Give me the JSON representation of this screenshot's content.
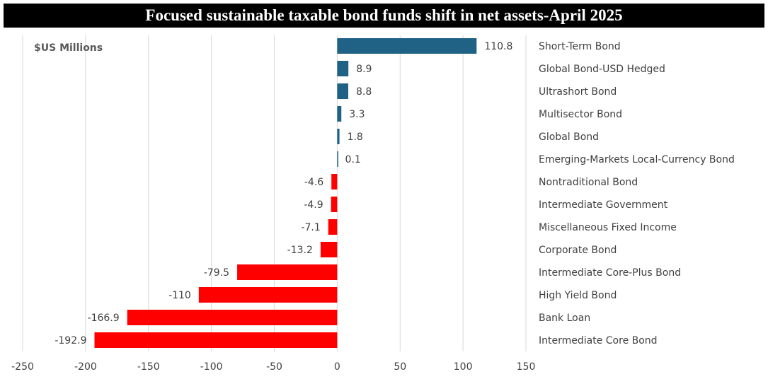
{
  "title": "Focused sustainable taxable bond funds shift in net assets-April 2025",
  "unit_label": "$US Millions",
  "colors": {
    "positive": "#1f6286",
    "negative": "#ff0000",
    "grid": "#d9d9d9",
    "title_bg": "#000000"
  },
  "chart_data": {
    "type": "bar",
    "orientation": "horizontal",
    "categories": [
      "Short-Term Bond",
      "Global Bond-USD Hedged",
      "Ultrashort Bond",
      "Multisector Bond",
      "Global Bond",
      "Emerging-Markets Local-Currency Bond",
      "Nontraditional Bond",
      "Intermediate Government",
      "Miscellaneous Fixed Income",
      "Corporate Bond",
      "Intermediate Core-Plus Bond",
      "High Yield Bond",
      "Bank Loan",
      "Intermediate Core Bond"
    ],
    "values": [
      110.8,
      8.9,
      8.8,
      3.3,
      1.8,
      0.1,
      -4.6,
      -4.9,
      -7.1,
      -13.2,
      -79.5,
      -110,
      -166.9,
      -192.9
    ],
    "value_labels": [
      "110.8",
      "8.9",
      "8.8",
      "3.3",
      "1.8",
      "0.1",
      "-4.6",
      "-4.9",
      "-7.1",
      "-13.2",
      "-79.5",
      "-110",
      "-166.9",
      "-192.9"
    ],
    "xlim": [
      -250,
      150
    ],
    "xticks": [
      -250,
      -200,
      -150,
      -100,
      -50,
      0,
      50,
      100,
      150
    ],
    "xtick_labels": [
      "-250",
      "-200",
      "-150",
      "-100",
      "-50",
      "0",
      "50",
      "100",
      "150"
    ],
    "grid": true,
    "legend": "none"
  }
}
